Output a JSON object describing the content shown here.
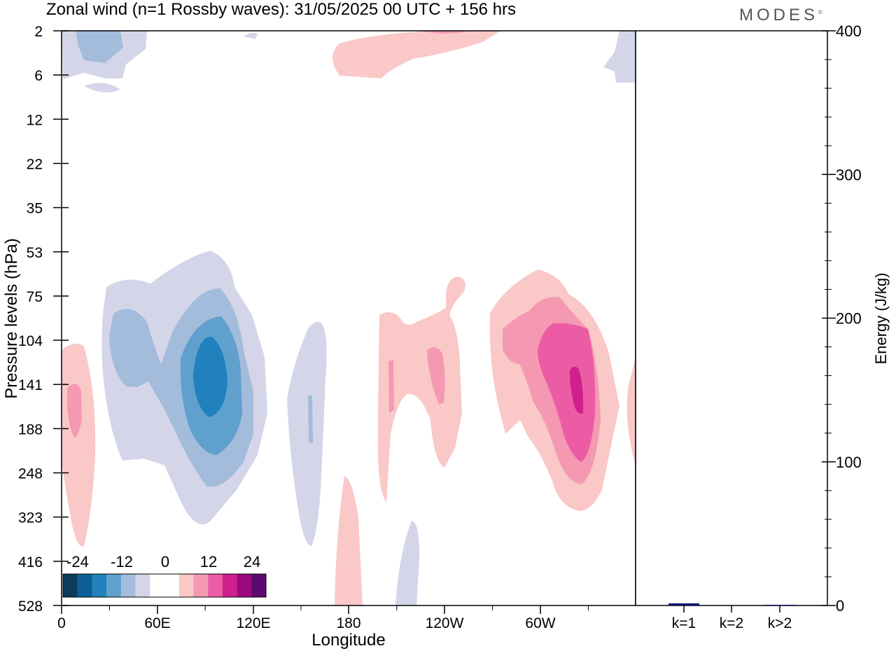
{
  "title": "Zonal wind (n=1 Rossby waves):  31/05/2025  00 UTC  + 156 hrs",
  "brand": "MODES",
  "colors": {
    "neg": [
      "#0c3c5a",
      "#0a6096",
      "#2081bd",
      "#5fa0cd",
      "#a3bcdb",
      "#d4d5e8"
    ],
    "zero": "#ffffff",
    "pos": [
      "#f9c8c7",
      "#f599b3",
      "#ec5ca4",
      "#d0208d",
      "#9c0a7e",
      "#5d0a70"
    ],
    "bar": "#141476"
  },
  "chart_data": [
    {
      "type": "heatmap",
      "title": "Zonal wind (n=1 Rossby waves):  31/05/2025  00 UTC  + 156 hrs",
      "xlabel": "Longitude",
      "ylabel": "Pressure levels (hPa)",
      "x_ticks": [
        "0",
        "60E",
        "120E",
        "180",
        "120W",
        "60W"
      ],
      "y_ticks": [
        "2",
        "6",
        "12",
        "22",
        "35",
        "53",
        "75",
        "104",
        "141",
        "188",
        "248",
        "323",
        "416",
        "528"
      ],
      "colorbar": {
        "labels": [
          "-24",
          "-12",
          "0",
          "12",
          "24"
        ],
        "levels": [
          -30,
          -25,
          -20,
          -15,
          -10,
          -5,
          0,
          5,
          10,
          15,
          20,
          25,
          30
        ]
      },
      "features": [
        {
          "sign": "neg",
          "peak_level": 4,
          "lon_center": 90,
          "pressure_center": 141
        },
        {
          "sign": "neg",
          "peak_level": 1,
          "lon_center": 155,
          "pressure_center": 188
        },
        {
          "sign": "neg",
          "peak_level": 1,
          "lon_center": 205,
          "pressure_center": 450
        },
        {
          "sign": "neg",
          "peak_level": 2,
          "lon_center": 12,
          "pressure_center": 3
        },
        {
          "sign": "pos",
          "peak_level": 4,
          "lon_center": 290,
          "pressure_center": 141
        },
        {
          "sign": "pos",
          "peak_level": 2,
          "lon_center": 9,
          "pressure_center": 160
        },
        {
          "sign": "pos",
          "peak_level": 2,
          "lon_center": 232,
          "pressure_center": 125
        },
        {
          "sign": "pos",
          "peak_level": 2,
          "lon_center": 205,
          "pressure_center": 141
        },
        {
          "sign": "pos",
          "peak_level": 1,
          "lon_center": 180,
          "pressure_center": 400
        },
        {
          "sign": "pos",
          "peak_level": 1,
          "lon_center": 210,
          "pressure_center": 3
        }
      ]
    },
    {
      "type": "bar",
      "title": "",
      "xlabel": "",
      "ylabel": "Energy (J/kg)",
      "categories": [
        "k=1",
        "k=2",
        "k>2"
      ],
      "values": [
        1.5,
        0,
        0.5
      ],
      "ylim": [
        0,
        400
      ],
      "y_ticks": [
        "0",
        "100",
        "200",
        "300",
        "400"
      ]
    }
  ]
}
